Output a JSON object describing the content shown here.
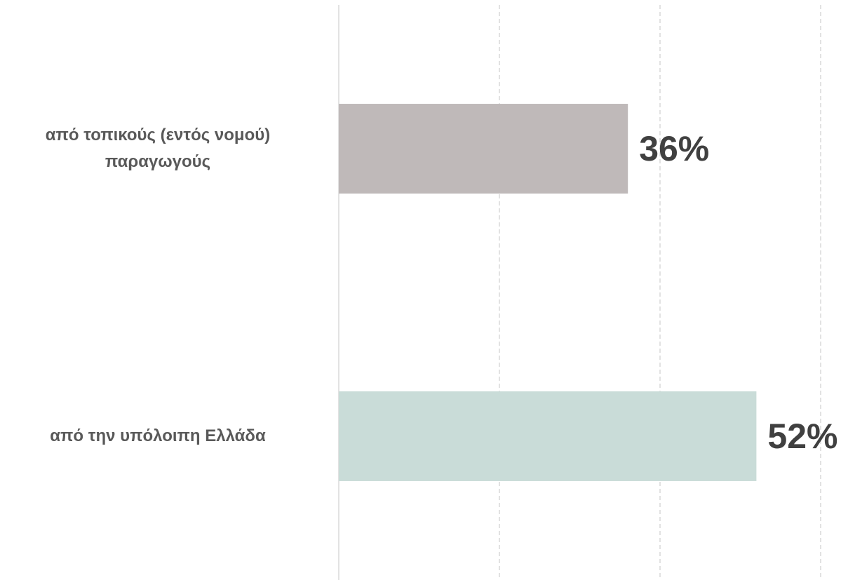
{
  "chart_data": {
    "type": "bar",
    "orientation": "horizontal",
    "categories": [
      "από τοπικούς (εντός νομού) παραγωγούς",
      "από την υπόλοιπη Ελλάδα"
    ],
    "values": [
      36,
      52
    ],
    "value_labels": [
      "36%",
      "52%"
    ],
    "colors": [
      "#bfb9b9",
      "#c9dcd8"
    ],
    "xlim": [
      0,
      60
    ],
    "xticks": [
      0,
      20,
      40,
      60
    ],
    "grid": true
  }
}
